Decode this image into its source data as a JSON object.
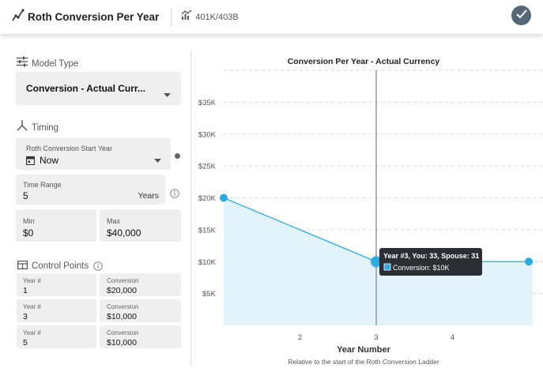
{
  "header": {
    "title": "Roth Conversion Per Year",
    "subtitle": "401K/403B"
  },
  "model_type": {
    "label": "Model Type",
    "selected": "Conversion - Actual Curr..."
  },
  "timing": {
    "label": "Timing",
    "start_year_label": "Roth Conversion Start Year",
    "start_year_value": "Now",
    "time_range_label": "Time Range",
    "time_range_value": "5",
    "time_range_unit": "Years",
    "min_label": "Min",
    "min_value": "$0",
    "max_label": "Max",
    "max_value": "$40,000"
  },
  "control_points": {
    "label": "Control Points",
    "rows": [
      {
        "year_label": "Year #",
        "year": "1",
        "conv_label": "Conversion",
        "conv": "$20,000"
      },
      {
        "year_label": "Year #",
        "year": "3",
        "conv_label": "Conversion",
        "conv": "$10,000"
      },
      {
        "year_label": "Year #",
        "year": "5",
        "conv_label": "Conversion",
        "conv": "$10,000"
      }
    ]
  },
  "tooltip": {
    "title": "Year #3, You: 33, Spouse: 31",
    "series_text": "Conversion: $10K"
  },
  "chart_data": {
    "type": "area",
    "title": "Conversion Per Year - Actual Currency",
    "xlabel": "Year Number",
    "subtitle_bottom": "Relative to the start of the Roth Conversion Ladder",
    "x": [
      1,
      3,
      5
    ],
    "series": [
      {
        "name": "Conversion",
        "values": [
          20000,
          10000,
          10000
        ]
      }
    ],
    "xlim": [
      1,
      5
    ],
    "ylim": [
      0,
      40000
    ],
    "x_ticks": [
      "2",
      "3",
      "4"
    ],
    "y_ticks": [
      "$5K",
      "$10K",
      "$15K",
      "$20K",
      "$25K",
      "$30K",
      "$35K"
    ],
    "highlight_x": 3,
    "grid": true,
    "colors": {
      "line": "#29aae2",
      "fill": "#e3f3fc",
      "marker": "#29aae2",
      "cursor": "#9a9a9a"
    }
  }
}
